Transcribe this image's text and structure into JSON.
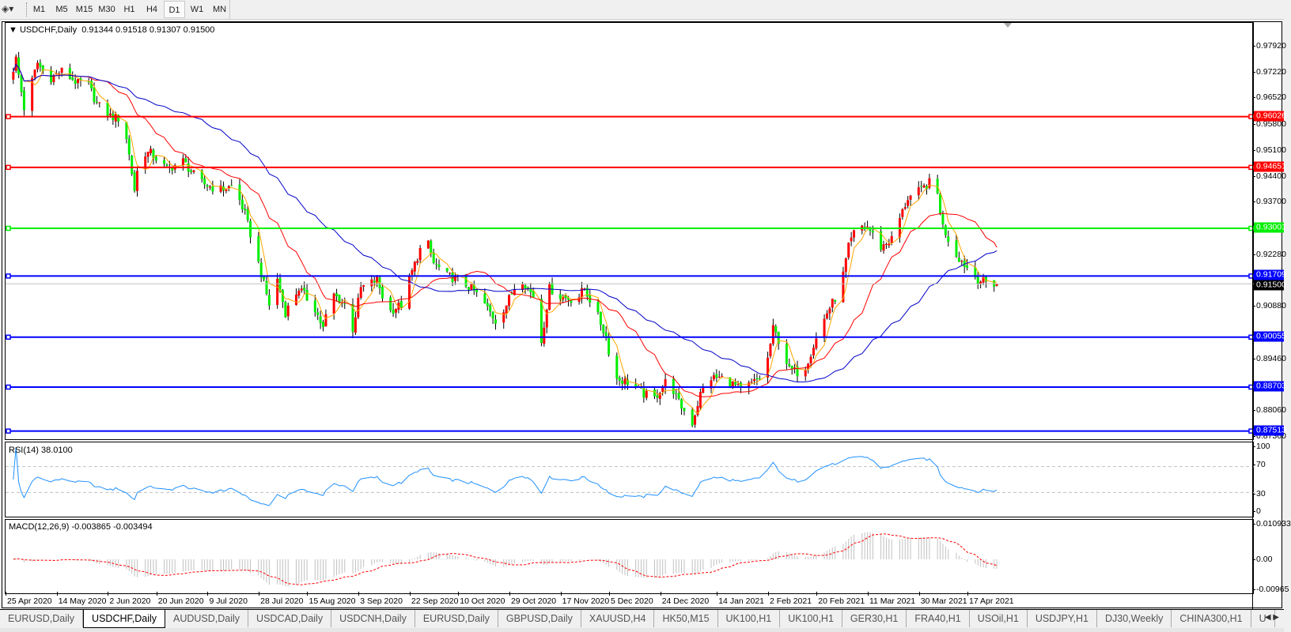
{
  "toolbar": {
    "tool_icon": "drawing-tools-icon",
    "timeframes": [
      "M1",
      "M5",
      "M15",
      "M30",
      "H1",
      "H4",
      "D1",
      "W1",
      "MN"
    ],
    "active_timeframe": "D1"
  },
  "chart": {
    "symbol_label": "USDCHF,Daily",
    "ohlc_label": "0.91344 0.91518 0.91307 0.91500",
    "colors": {
      "bull_candle": "#ff0000",
      "bear_candle": "#00ee00",
      "wick": "#000000",
      "ma_fast": "#ffa500",
      "ma_mid": "#ff0000",
      "ma_slow": "#0000c8",
      "rsi": "#1e90ff",
      "macd_hist": "#c0c0c0",
      "macd_signal": "#ff0000"
    },
    "price_axis": [
      "0.97920",
      "0.97220",
      "0.96520",
      "0.95800",
      "0.95100",
      "0.94400",
      "0.93700",
      "0.92280",
      "0.90880",
      "0.89460",
      "0.88060",
      "0.87360"
    ],
    "current_price": "0.91500",
    "levels": [
      {
        "price": "0.96026",
        "color": "#ff0000"
      },
      {
        "price": "0.94651",
        "color": "#ff0000"
      },
      {
        "price": "0.93001",
        "color": "#00ee00"
      },
      {
        "price": "0.91709",
        "color": "#0000ff"
      },
      {
        "price": "0.90055",
        "color": "#0000ff"
      },
      {
        "price": "0.88703",
        "color": "#0000ff"
      },
      {
        "price": "0.87513",
        "color": "#0000ff"
      }
    ],
    "date_axis": [
      "25 Apr 2020",
      "14 May 2020",
      "2 Jun 2020",
      "20 Jun 2020",
      "9 Jul 2020",
      "28 Jul 2020",
      "15 Aug 2020",
      "3 Sep 2020",
      "22 Sep 2020",
      "10 Oct 2020",
      "29 Oct 2020",
      "17 Nov 2020",
      "5 Dec 2020",
      "24 Dec 2020",
      "14 Jan 2021",
      "2 Feb 2021",
      "20 Feb 2021",
      "11 Mar 2021",
      "30 Mar 2021",
      "17 Apr 2021"
    ],
    "close_path": [
      [
        "2020-04-26",
        0.9704
      ],
      [
        "2020-04-28",
        0.9759
      ],
      [
        "2020-05-01",
        0.9626
      ],
      [
        "2020-05-06",
        0.9748
      ],
      [
        "2020-05-10",
        0.9703
      ],
      [
        "2020-05-15",
        0.9726
      ],
      [
        "2020-05-21",
        0.9692
      ],
      [
        "2020-05-24",
        0.9703
      ],
      [
        "2020-05-28",
        0.9637
      ],
      [
        "2020-06-02",
        0.9604
      ],
      [
        "2020-06-07",
        0.9593
      ],
      [
        "2020-06-11",
        0.9404
      ],
      [
        "2020-06-13",
        0.9504
      ],
      [
        "2020-06-17",
        0.9504
      ],
      [
        "2020-06-23",
        0.946
      ],
      [
        "2020-06-29",
        0.9482
      ],
      [
        "2020-07-05",
        0.9426
      ],
      [
        "2020-07-12",
        0.9404
      ],
      [
        "2020-07-18",
        0.9415
      ],
      [
        "2020-07-22",
        0.9338
      ],
      [
        "2020-07-27",
        0.9205
      ],
      [
        "2020-07-31",
        0.9094
      ],
      [
        "2020-08-03",
        0.9161
      ],
      [
        "2020-08-06",
        0.9072
      ],
      [
        "2020-08-11",
        0.9138
      ],
      [
        "2020-08-17",
        0.9083
      ],
      [
        "2020-08-20",
        0.9028
      ],
      [
        "2020-08-23",
        0.9127
      ],
      [
        "2020-08-28",
        0.9094
      ],
      [
        "2020-08-31",
        0.9028
      ],
      [
        "2020-09-03",
        0.9138
      ],
      [
        "2020-09-09",
        0.9161
      ],
      [
        "2020-09-13",
        0.9072
      ],
      [
        "2020-09-18",
        0.9094
      ],
      [
        "2020-09-22",
        0.9183
      ],
      [
        "2020-09-27",
        0.9282
      ],
      [
        "2020-09-30",
        0.9205
      ],
      [
        "2020-10-05",
        0.9172
      ],
      [
        "2020-10-09",
        0.9161
      ],
      [
        "2020-10-14",
        0.9138
      ],
      [
        "2020-10-18",
        0.9105
      ],
      [
        "2020-10-23",
        0.905
      ],
      [
        "2020-10-27",
        0.9094
      ],
      [
        "2020-11-01",
        0.9172
      ],
      [
        "2020-11-06",
        0.9116
      ],
      [
        "2020-11-09",
        0.8994
      ],
      [
        "2020-11-12",
        0.9138
      ],
      [
        "2020-11-16",
        0.9116
      ],
      [
        "2020-11-22",
        0.9105
      ],
      [
        "2020-11-25",
        0.9138
      ],
      [
        "2020-11-30",
        0.9061
      ],
      [
        "2020-12-03",
        0.9006
      ],
      [
        "2020-12-06",
        0.8895
      ],
      [
        "2020-12-11",
        0.8884
      ],
      [
        "2020-12-17",
        0.8851
      ],
      [
        "2020-12-21",
        0.884
      ],
      [
        "2020-12-26",
        0.8895
      ],
      [
        "2020-12-30",
        0.8828
      ],
      [
        "2021-01-04",
        0.8773
      ],
      [
        "2021-01-07",
        0.8851
      ],
      [
        "2021-01-10",
        0.8895
      ],
      [
        "2021-01-16",
        0.8895
      ],
      [
        "2021-01-22",
        0.8862
      ],
      [
        "2021-01-27",
        0.8884
      ],
      [
        "2021-01-31",
        0.8906
      ],
      [
        "2021-02-03",
        0.9028
      ],
      [
        "2021-02-06",
        0.8983
      ],
      [
        "2021-02-09",
        0.8917
      ],
      [
        "2021-02-14",
        0.8906
      ],
      [
        "2021-02-18",
        0.8983
      ],
      [
        "2021-02-23",
        0.9072
      ],
      [
        "2021-02-28",
        0.9138
      ],
      [
        "2021-03-03",
        0.9249
      ],
      [
        "2021-03-06",
        0.9305
      ],
      [
        "2021-03-10",
        0.9305
      ],
      [
        "2021-03-15",
        0.9249
      ],
      [
        "2021-03-19",
        0.9271
      ],
      [
        "2021-03-22",
        0.9327
      ],
      [
        "2021-03-25",
        0.9382
      ],
      [
        "2021-03-30",
        0.9404
      ],
      [
        "2021-04-04",
        0.9437
      ],
      [
        "2021-04-07",
        0.9305
      ],
      [
        "2021-04-11",
        0.9238
      ],
      [
        "2021-04-16",
        0.9194
      ],
      [
        "2021-04-20",
        0.9161
      ],
      [
        "2021-04-25",
        0.915
      ],
      [
        "2021-04-27",
        0.915
      ]
    ]
  },
  "rsi": {
    "label": "RSI(14) 38.0100",
    "axis": [
      "100",
      "70",
      "30",
      "0"
    ]
  },
  "macd": {
    "label": "MACD(12,26,9) -0.003865 -0.003494",
    "axis": [
      "0.010933",
      "0.00",
      "-0.00965"
    ]
  },
  "tabs": [
    "EURUSD,Daily",
    "USDCHF,Daily",
    "AUDUSD,Daily",
    "USDCAD,Daily",
    "USDCNH,Daily",
    "EURUSD,Daily",
    "GBPUSD,Daily",
    "XAUUSD,H4",
    "HK50,M15",
    "UK100,H1",
    "UK100,H1",
    "GER30,H1",
    "FRA40,H1",
    "USOil,H1",
    "USDJPY,H1",
    "DJ30,Weekly",
    "CHINA300,H1",
    "U"
  ],
  "active_tab": "USDCHF,Daily"
}
